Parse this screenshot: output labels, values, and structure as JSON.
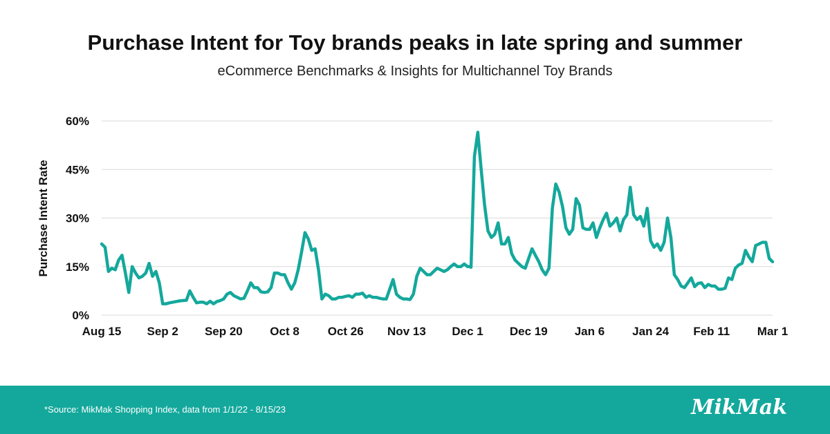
{
  "header": {
    "title": "Purchase Intent for Toy brands peaks in late spring and summer",
    "subtitle": "eCommerce Benchmarks & Insights for Multichannel Toy Brands"
  },
  "footer": {
    "source": "*Source: MikMak Shopping Index, data from 1/1/22 - 8/15/23",
    "logo": "MikMak"
  },
  "colors": {
    "line": "#14a89c",
    "footer_bg": "#14a89c",
    "grid": "#d9d9d9"
  },
  "chart_data": {
    "type": "line",
    "title": "Purchase Intent for Toy brands peaks in late spring and summer",
    "subtitle": "eCommerce Benchmarks & Insights for Multichannel Toy Brands",
    "xlabel": "",
    "ylabel": "Purchase Intent Rate",
    "ylim": [
      0,
      60
    ],
    "yticks": [
      0,
      15,
      30,
      45,
      60
    ],
    "ytick_labels": [
      "0%",
      "15%",
      "30%",
      "45%",
      "60%"
    ],
    "xlim": [
      0,
      198
    ],
    "xticks": [
      0,
      18,
      36,
      54,
      72,
      90,
      108,
      126,
      144,
      162,
      180,
      198
    ],
    "xtick_labels": [
      "Aug 15",
      "Sep 2",
      "Sep 20",
      "Oct 8",
      "Oct 26",
      "Nov 13",
      "Dec 1",
      "Dec 19",
      "Jan 6",
      "Jan 24",
      "Feb 11",
      "Mar 1"
    ],
    "grid": true,
    "legend": "none",
    "series": [
      {
        "name": "",
        "x": [
          0,
          1,
          2,
          3,
          4,
          5,
          6,
          7,
          8,
          9,
          10,
          11,
          12,
          13,
          14,
          15,
          16,
          17,
          18,
          19,
          20,
          21,
          22,
          23,
          24,
          25,
          26,
          27,
          28,
          29,
          30,
          31,
          32,
          33,
          34,
          35,
          36,
          37,
          38,
          39,
          40,
          41,
          42,
          43,
          44,
          45,
          46,
          47,
          48,
          49,
          50,
          51,
          52,
          53,
          54,
          55,
          56,
          57,
          58,
          59,
          60,
          61,
          62,
          63,
          64,
          65,
          66,
          67,
          68,
          69,
          70,
          71,
          72,
          73,
          74,
          75,
          76,
          77,
          78,
          79,
          80,
          81,
          82,
          83,
          84,
          85,
          86,
          87,
          88,
          89,
          90,
          91,
          92,
          93,
          94,
          95,
          96,
          97,
          98,
          99,
          100,
          101,
          102,
          103,
          104,
          105,
          106,
          107,
          108,
          108.5,
          109,
          110,
          111,
          112,
          113,
          114,
          115,
          116,
          117,
          118,
          119,
          120,
          121,
          122,
          123,
          124,
          125,
          126,
          127,
          128,
          129,
          130,
          131,
          132,
          133,
          134,
          135,
          136,
          137,
          138,
          139,
          140,
          141,
          142,
          143,
          144,
          145,
          146,
          147,
          148,
          149,
          150,
          151,
          152,
          153,
          154,
          155,
          156,
          157,
          158,
          159,
          160,
          161,
          162,
          163,
          164,
          165,
          166,
          167,
          168,
          169,
          170,
          171,
          172,
          173,
          174,
          175,
          176,
          177,
          178,
          179,
          180,
          181,
          182,
          183,
          184,
          185,
          186,
          187,
          188,
          189,
          190,
          191,
          192,
          193,
          194,
          195,
          196,
          197,
          198
        ],
        "values": [
          22,
          21,
          13.5,
          14.5,
          14,
          17,
          18.5,
          13,
          7,
          15,
          13,
          11.5,
          12,
          13,
          16,
          12,
          13.5,
          10,
          3.5,
          3.5,
          3.8,
          4,
          4.2,
          4.4,
          4.5,
          4.6,
          7.5,
          5.5,
          3.8,
          4,
          4,
          3.5,
          4.3,
          3.5,
          4.2,
          4.5,
          5,
          6.5,
          7,
          6,
          5.5,
          5,
          5.2,
          7.5,
          10,
          8.5,
          8.5,
          7.2,
          7,
          7.2,
          8.5,
          13,
          13,
          12.5,
          12.5,
          10,
          8,
          10,
          14,
          19.5,
          25.5,
          23.5,
          20,
          20.5,
          14,
          5,
          6.5,
          6,
          5,
          5,
          5.5,
          5.5,
          5.8,
          6,
          5.5,
          6.5,
          6.5,
          6.8,
          5.5,
          6,
          5.5,
          5.5,
          5.2,
          5,
          5,
          8,
          11,
          6.5,
          5.5,
          5,
          5,
          4.8,
          6.5,
          12,
          14.5,
          13.5,
          12.5,
          12.5,
          13.5,
          14.5,
          14,
          13.5,
          14,
          15,
          15.8,
          15,
          15,
          15.8,
          15,
          15,
          14.8,
          49,
          56.5,
          45,
          34,
          26,
          24,
          25,
          28.5,
          22,
          22,
          24,
          19,
          17,
          16,
          15,
          14.5,
          17.5,
          20.5,
          18.5,
          16.5,
          14,
          12.5,
          14.5,
          33,
          40.5,
          38,
          33.5,
          27,
          25,
          26.5,
          36,
          34,
          27,
          26.5,
          26.5,
          28.5,
          24,
          27,
          29.5,
          31.5,
          27.5,
          28.5,
          30,
          26,
          29.5,
          31,
          39.5,
          31,
          29.5,
          30.5,
          27.5,
          33,
          23,
          21,
          22,
          20,
          22.5,
          30,
          24,
          12.5,
          11,
          9,
          8.5,
          10,
          11.5,
          8.8,
          9.8,
          10,
          8.5,
          9.5,
          9,
          9,
          8,
          8,
          8.3,
          11.5,
          11,
          14.5,
          15.5,
          16,
          20,
          18,
          16.5,
          21.5,
          22,
          22.5,
          22.5,
          17.5,
          16.5
        ]
      }
    ]
  }
}
